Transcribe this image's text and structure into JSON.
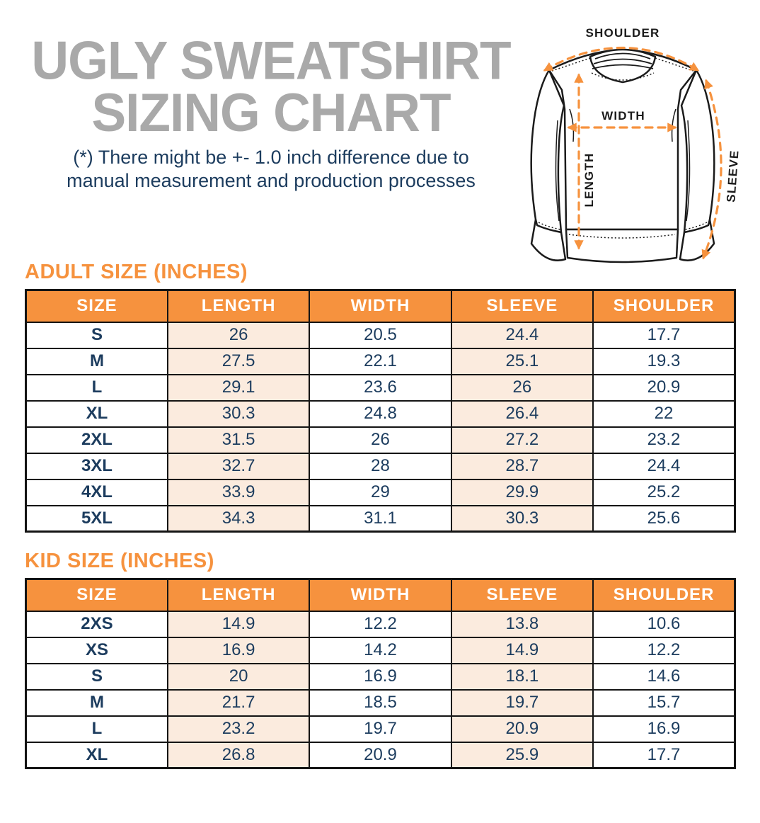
{
  "page": {
    "title_line1": "UGLY SWEATSHIRT",
    "title_line2": "SIZING CHART",
    "subtitle_line1": "(*) There might be +- 1.0 inch difference due to",
    "subtitle_line2": "manual measurement and production processes"
  },
  "diagram": {
    "shoulder_label": "SHOULDER",
    "width_label": "WIDTH",
    "length_label": "LENGTH",
    "sleeve_label": "SLEEVE"
  },
  "adult_table": {
    "heading": "ADULT SIZE (INCHES)",
    "columns": [
      "SIZE",
      "LENGTH",
      "WIDTH",
      "SLEEVE",
      "SHOULDER"
    ],
    "rows": [
      [
        "S",
        "26",
        "20.5",
        "24.4",
        "17.7"
      ],
      [
        "M",
        "27.5",
        "22.1",
        "25.1",
        "19.3"
      ],
      [
        "L",
        "29.1",
        "23.6",
        "26",
        "20.9"
      ],
      [
        "XL",
        "30.3",
        "24.8",
        "26.4",
        "22"
      ],
      [
        "2XL",
        "31.5",
        "26",
        "27.2",
        "23.2"
      ],
      [
        "3XL",
        "32.7",
        "28",
        "28.7",
        "24.4"
      ],
      [
        "4XL",
        "33.9",
        "29",
        "29.9",
        "25.2"
      ],
      [
        "5XL",
        "34.3",
        "31.1",
        "30.3",
        "25.6"
      ]
    ]
  },
  "kid_table": {
    "heading": "KID SIZE (INCHES)",
    "columns": [
      "SIZE",
      "LENGTH",
      "WIDTH",
      "SLEEVE",
      "SHOULDER"
    ],
    "rows": [
      [
        "2XS",
        "14.9",
        "12.2",
        "13.8",
        "10.6"
      ],
      [
        "XS",
        "16.9",
        "14.2",
        "14.9",
        "12.2"
      ],
      [
        "S",
        "20",
        "16.9",
        "18.1",
        "14.6"
      ],
      [
        "M",
        "21.7",
        "18.5",
        "19.7",
        "15.7"
      ],
      [
        "L",
        "23.2",
        "19.7",
        "20.9",
        "16.9"
      ],
      [
        "XL",
        "26.8",
        "20.9",
        "25.9",
        "17.7"
      ]
    ]
  },
  "colors": {
    "accent_orange": "#f6923e",
    "cell_peach": "#fbebde",
    "navy_text": "#1c3c5e",
    "title_gray": "#a9a9a9",
    "outline_dark": "#1b1b1b"
  }
}
